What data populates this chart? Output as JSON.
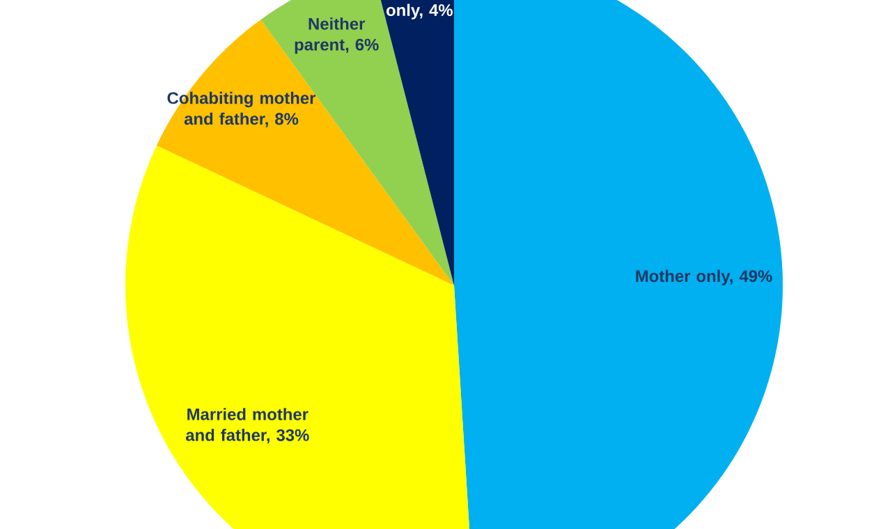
{
  "chart_data": {
    "type": "pie",
    "categories": [
      "Mother only, 49%",
      "Married mother and father, 33%",
      "Cohabiting mother and father, 8%",
      "Neither parent, 6%",
      "only, 4%"
    ],
    "values": [
      49,
      33,
      8,
      6,
      4
    ],
    "colors": [
      "#00b0f0",
      "#ffff00",
      "#ffc000",
      "#92d050",
      "#002060"
    ]
  }
}
